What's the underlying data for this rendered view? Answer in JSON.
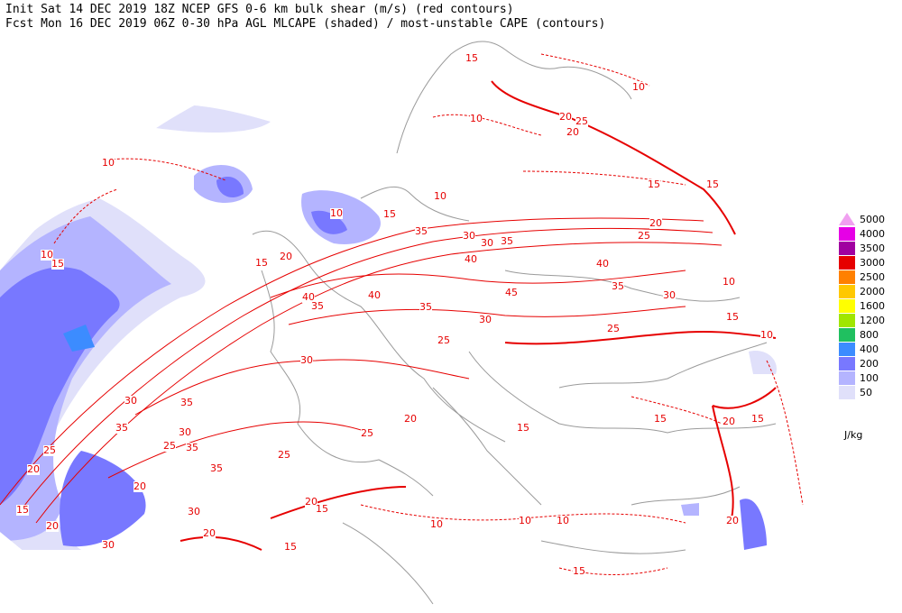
{
  "header": {
    "line1": "Init  Sat 14 DEC 2019 18Z  NCEP GFS 0-6 km bulk shear (m/s) (red contours)",
    "line2": "Fcst Mon 16 DEC 2019 06Z  0-30 hPa AGL MLCAPE (shaded) / most-unstable CAPE (contours)"
  },
  "legend": {
    "unit": "J/kg",
    "levels": [
      5000,
      4000,
      3500,
      3000,
      2500,
      2000,
      1600,
      1200,
      800,
      400,
      200,
      100,
      50
    ],
    "colors": [
      "#f0a0f0",
      "#e600e6",
      "#a000a0",
      "#e60000",
      "#ff8000",
      "#ffc800",
      "#ffff00",
      "#a0e600",
      "#20c060",
      "#3c8cff",
      "#7878ff",
      "#b4b4ff",
      "#e0e0fa"
    ]
  },
  "contour_labels": [
    15,
    10,
    10,
    20,
    25,
    20,
    15,
    15,
    10,
    10,
    15,
    20,
    25,
    35,
    30,
    30,
    35,
    40,
    40,
    45,
    35,
    30,
    40,
    35,
    30,
    25,
    15,
    10,
    10,
    15,
    20,
    40,
    35,
    25,
    20,
    25,
    30,
    35,
    30,
    35,
    30,
    25,
    20,
    25,
    20,
    15,
    20,
    30,
    25,
    20,
    15,
    10,
    10,
    10,
    15,
    20,
    15,
    20,
    15,
    15,
    20,
    30,
    10,
    10,
    15,
    35,
    35,
    15
  ]
}
